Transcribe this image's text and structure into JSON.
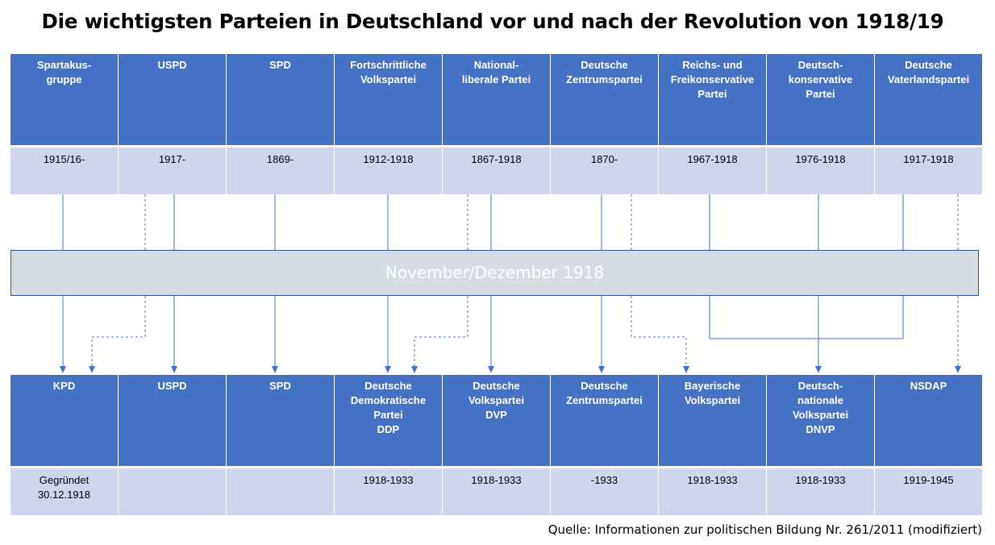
{
  "title": "Die wichtigsten Parteien in Deutschland vor und nach der Revolution von 1918/19",
  "band_label": "November/Dezember 1918",
  "source": "Quelle: Informationen zur politischen Bildung Nr. 261/2011 (modifiziert)",
  "before": [
    {
      "name": "Spartakus-\ngruppe",
      "years": "1915/16-"
    },
    {
      "name": "USPD",
      "years": "1917-"
    },
    {
      "name": "SPD",
      "years": "1869-"
    },
    {
      "name": "Fortschrittliche\nVolkspartei",
      "years": "1912-1918"
    },
    {
      "name": "National-\nliberale Partei",
      "years": "1867-1918"
    },
    {
      "name": "Deutsche\nZentrumspartei",
      "years": "1870-"
    },
    {
      "name": "Reichs- und\nFreikonservative\nPartei",
      "years": "1967-1918"
    },
    {
      "name": "Deutsch-\nkonservative\nPartei",
      "years": "1976-1918"
    },
    {
      "name": "Deutsche\nVaterlandspartei",
      "years": "1917-1918"
    }
  ],
  "after": [
    {
      "name": "KPD",
      "years": "Gegründet\n30.12.1918"
    },
    {
      "name": "USPD",
      "years": ""
    },
    {
      "name": "SPD",
      "years": ""
    },
    {
      "name": "Deutsche\nDemokratische\nPartei\nDDP",
      "years": "1918-1933"
    },
    {
      "name": "Deutsche\nVolkspartei\nDVP",
      "years": "1918-1933"
    },
    {
      "name": "Deutsche\nZentrumspartei",
      "years": "-1933"
    },
    {
      "name": "Bayerische\nVolkspartei",
      "years": "1918-1933"
    },
    {
      "name": "Deutsch-\nnationale\nVolkspartei\nDNVP",
      "years": "1918-1933"
    },
    {
      "name": "NSDAP",
      "years": "1919-1945"
    }
  ],
  "colors": {
    "header": "#4472C4",
    "subrow": "#CFD5EA",
    "band": "#D6DCE4",
    "connector": "#4472C4"
  }
}
